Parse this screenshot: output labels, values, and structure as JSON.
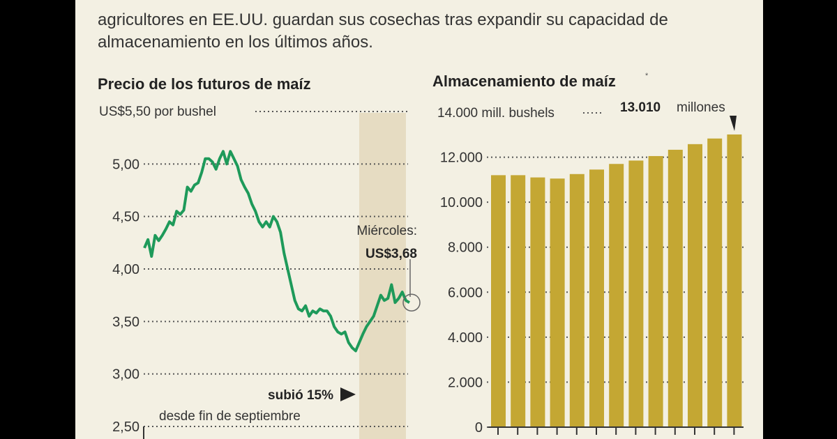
{
  "intro": {
    "line1": "agricultores en EE.UU. guardan sus cosechas tras expandir su capacidad de",
    "line2": "almacenamiento en los últimos años."
  },
  "colors": {
    "background": "#f3f0e3",
    "line": "#1e9a5a",
    "bars": "#c4a733",
    "highlight": "#e6dcc2"
  },
  "chart_data": [
    {
      "type": "line",
      "title": "Precio de los futuros de maíz",
      "ylabel": "US$5,50 por bushel",
      "ylim": [
        2.5,
        5.5
      ],
      "yticks": [
        "2,50",
        "3,00",
        "3,50",
        "4,00",
        "4,50",
        "5,00"
      ],
      "grid": true,
      "series": [
        {
          "values": [
            4.2,
            4.28,
            4.12,
            4.32,
            4.27,
            4.32,
            4.38,
            4.45,
            4.42,
            4.55,
            4.52,
            4.56,
            4.78,
            4.74,
            4.8,
            4.82,
            4.92,
            5.05,
            5.05,
            5.02,
            4.95,
            5.05,
            5.12,
            5.0,
            5.12,
            5.05,
            4.98,
            4.85,
            4.78,
            4.72,
            4.62,
            4.55,
            4.45,
            4.4,
            4.45,
            4.4,
            4.5,
            4.45,
            4.35,
            4.15,
            4.0,
            3.85,
            3.7,
            3.62,
            3.6,
            3.65,
            3.55,
            3.6,
            3.58,
            3.62,
            3.6,
            3.6,
            3.55,
            3.45,
            3.4,
            3.38,
            3.4,
            3.3,
            3.25,
            3.22,
            3.3,
            3.38,
            3.45,
            3.5,
            3.55,
            3.65,
            3.75,
            3.7,
            3.72,
            3.85,
            3.68,
            3.72,
            3.78,
            3.7,
            3.68
          ]
        }
      ],
      "annotations": {
        "last_label": "Miércoles:",
        "last_value": "US$3,68",
        "change_bold": "subió 15%",
        "change_text": "desde fin de septiembre"
      }
    },
    {
      "type": "bar",
      "title": "Almacenamiento de maíz",
      "title_footnote": "*",
      "ylabel": "14.000 mill. bushels",
      "ylim": [
        0,
        14000
      ],
      "yticks": [
        "0",
        "2.000",
        "4.000",
        "6.000",
        "8.000",
        "10.000",
        "12.000"
      ],
      "values": [
        11200,
        11200,
        11100,
        11050,
        11250,
        11450,
        11700,
        11850,
        12050,
        12330,
        12580,
        12830,
        13010
      ],
      "annotation_bold": "13.010",
      "annotation_text": "millones"
    }
  ]
}
